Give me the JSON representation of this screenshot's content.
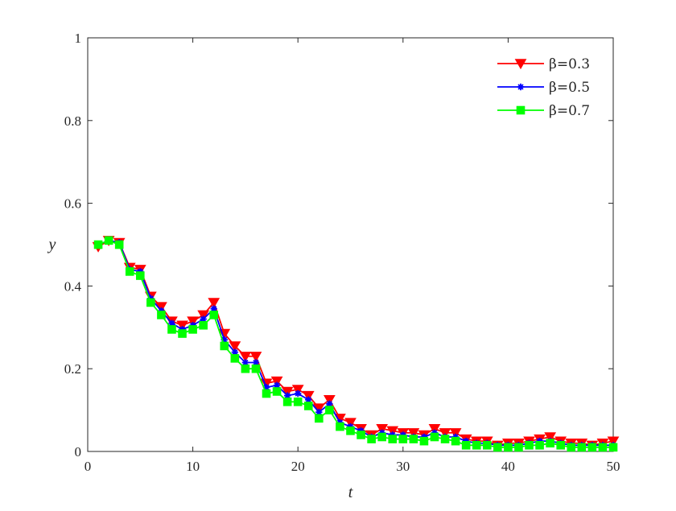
{
  "chart_data": {
    "type": "line",
    "title": "",
    "xlabel": "t",
    "ylabel": "y",
    "xlim": [
      0,
      50
    ],
    "ylim": [
      0,
      1
    ],
    "xticks": [
      0,
      10,
      20,
      30,
      40,
      50
    ],
    "yticks": [
      0,
      0.2,
      0.4,
      0.6,
      0.8,
      1
    ],
    "xtick_labels": [
      "0",
      "10",
      "20",
      "30",
      "40",
      "50"
    ],
    "ytick_labels": [
      "0",
      "0.2",
      "0.4",
      "0.6",
      "0.8",
      "1"
    ],
    "grid": false,
    "legend_position": "top-right",
    "x": [
      1,
      2,
      3,
      4,
      5,
      6,
      7,
      8,
      9,
      10,
      11,
      12,
      13,
      14,
      15,
      16,
      17,
      18,
      19,
      20,
      21,
      22,
      23,
      24,
      25,
      26,
      27,
      28,
      29,
      30,
      31,
      32,
      33,
      34,
      35,
      36,
      37,
      38,
      39,
      40,
      41,
      42,
      43,
      44,
      45,
      46,
      47,
      48,
      49,
      50
    ],
    "series": [
      {
        "name": "β=0.3",
        "color": "#ff0000",
        "marker": "triangle-down",
        "values": [
          0.495,
          0.51,
          0.505,
          0.445,
          0.44,
          0.375,
          0.35,
          0.315,
          0.305,
          0.315,
          0.33,
          0.36,
          0.285,
          0.255,
          0.23,
          0.23,
          0.165,
          0.17,
          0.145,
          0.15,
          0.135,
          0.105,
          0.125,
          0.08,
          0.07,
          0.055,
          0.04,
          0.055,
          0.05,
          0.045,
          0.045,
          0.04,
          0.055,
          0.045,
          0.045,
          0.03,
          0.025,
          0.025,
          0.015,
          0.02,
          0.02,
          0.025,
          0.03,
          0.035,
          0.025,
          0.02,
          0.02,
          0.015,
          0.02,
          0.025
        ]
      },
      {
        "name": "β=0.5",
        "color": "#0000ff",
        "marker": "asterisk",
        "values": [
          0.5,
          0.51,
          0.505,
          0.44,
          0.435,
          0.37,
          0.34,
          0.31,
          0.295,
          0.305,
          0.32,
          0.345,
          0.27,
          0.24,
          0.215,
          0.215,
          0.155,
          0.16,
          0.135,
          0.14,
          0.125,
          0.095,
          0.115,
          0.07,
          0.06,
          0.05,
          0.035,
          0.045,
          0.04,
          0.04,
          0.035,
          0.035,
          0.045,
          0.035,
          0.035,
          0.025,
          0.02,
          0.02,
          0.015,
          0.015,
          0.015,
          0.02,
          0.025,
          0.025,
          0.02,
          0.015,
          0.015,
          0.015,
          0.015,
          0.015
        ]
      },
      {
        "name": "β=0.7",
        "color": "#00ff00",
        "marker": "square",
        "values": [
          0.5,
          0.51,
          0.5,
          0.435,
          0.425,
          0.36,
          0.33,
          0.295,
          0.285,
          0.295,
          0.305,
          0.33,
          0.255,
          0.225,
          0.2,
          0.2,
          0.14,
          0.145,
          0.12,
          0.12,
          0.11,
          0.08,
          0.1,
          0.06,
          0.05,
          0.04,
          0.03,
          0.035,
          0.03,
          0.03,
          0.03,
          0.025,
          0.035,
          0.03,
          0.025,
          0.015,
          0.015,
          0.015,
          0.01,
          0.01,
          0.01,
          0.015,
          0.015,
          0.02,
          0.015,
          0.01,
          0.01,
          0.01,
          0.01,
          0.01
        ]
      }
    ]
  }
}
